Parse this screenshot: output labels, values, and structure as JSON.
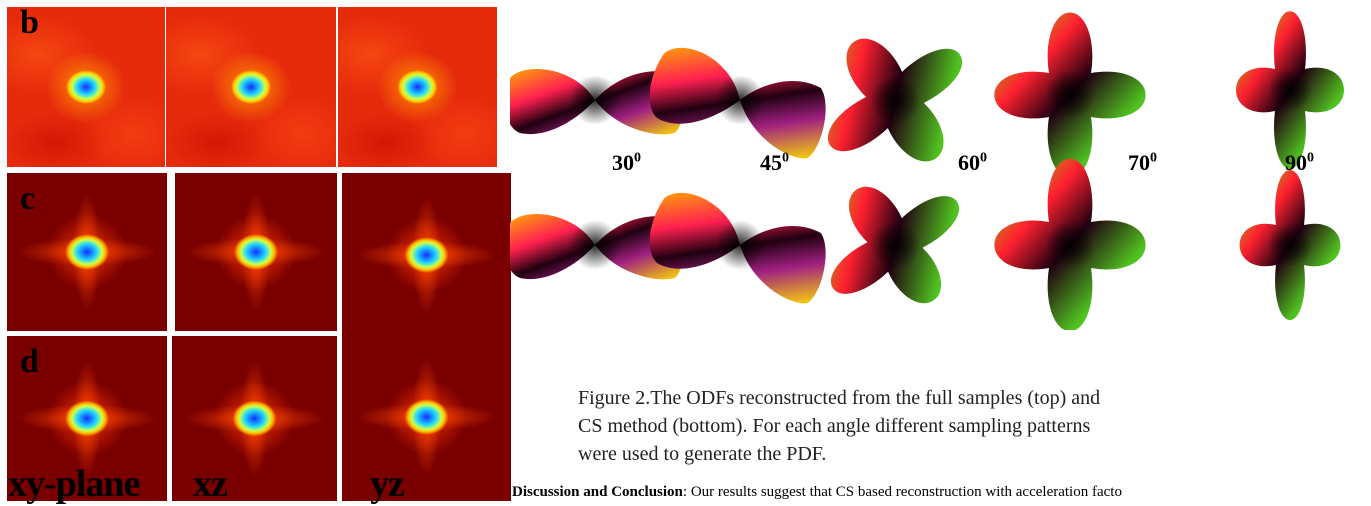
{
  "panels": {
    "labels": [
      "b",
      "c",
      "d"
    ],
    "planes": [
      "xy-plane",
      "xz",
      "yz"
    ]
  },
  "figure": {
    "angles": [
      {
        "number": "30",
        "sup": "0"
      },
      {
        "number": "45",
        "sup": "0"
      },
      {
        "number": "60",
        "sup": "0"
      },
      {
        "number": "70",
        "sup": "0"
      },
      {
        "number": "90",
        "sup": "0"
      }
    ],
    "caption": [
      "Figure 2.The ODFs reconstructed from the full samples (top) and",
      "CS method (bottom). For each angle different sampling patterns",
      "were used to generate the PDF."
    ]
  },
  "discussion": {
    "heading": "Discussion and Conclusion",
    "text": ": Our results suggest that CS based reconstruction with acceleration facto"
  }
}
